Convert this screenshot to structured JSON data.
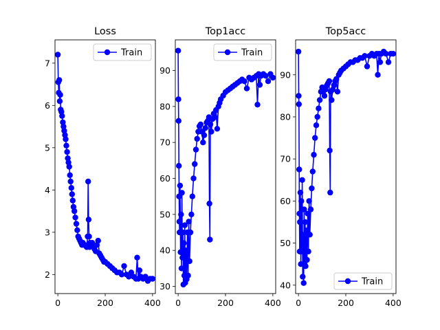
{
  "chart_data": [
    {
      "type": "line",
      "title": "Loss",
      "xlabel": "",
      "ylabel": "",
      "xlim": [
        -12,
        412
      ],
      "ylim": [
        1.55,
        7.55
      ],
      "xticks": [
        0,
        200,
        400
      ],
      "yticks": [
        2,
        3,
        4,
        5,
        6,
        7
      ],
      "legend": {
        "entries": [
          "Train"
        ],
        "placement": "top-right"
      },
      "grid": false,
      "series": [
        {
          "name": "Train",
          "color": "#0000ff",
          "marker": "circle",
          "x": [
            0,
            2,
            4,
            6,
            8,
            10,
            12,
            15,
            18,
            21,
            24,
            27,
            30,
            33,
            36,
            39,
            42,
            45,
            48,
            51,
            54,
            57,
            60,
            63,
            66,
            70,
            74,
            78,
            82,
            86,
            90,
            94,
            98,
            102,
            106,
            110,
            114,
            118,
            122,
            126,
            128,
            130,
            132,
            134,
            136,
            140,
            145,
            150,
            155,
            160,
            165,
            170,
            175,
            180,
            185,
            190,
            195,
            200,
            210,
            220,
            230,
            240,
            250,
            260,
            270,
            280,
            290,
            300,
            310,
            320,
            330,
            335,
            340,
            345,
            350,
            360,
            370,
            380,
            390,
            400
          ],
          "y": [
            7.2,
            6.55,
            6.3,
            6.6,
            6.1,
            6.25,
            5.9,
            5.85,
            5.75,
            5.6,
            5.5,
            5.4,
            5.3,
            5.2,
            5.05,
            4.9,
            4.75,
            4.65,
            4.55,
            4.35,
            4.2,
            4.05,
            3.9,
            3.75,
            3.6,
            3.5,
            3.35,
            3.2,
            3.05,
            2.9,
            2.85,
            2.8,
            2.75,
            2.7,
            2.75,
            2.7,
            2.7,
            2.68,
            2.65,
            2.9,
            4.2,
            3.3,
            2.9,
            2.65,
            2.75,
            2.7,
            2.75,
            2.65,
            2.6,
            2.55,
            2.7,
            2.8,
            2.5,
            2.45,
            2.4,
            2.35,
            2.3,
            2.3,
            2.25,
            2.2,
            2.15,
            2.1,
            2.05,
            2.05,
            2.0,
            2.2,
            2.0,
            1.95,
            2.05,
            1.95,
            1.9,
            2.4,
            1.9,
            2.1,
            1.95,
            1.9,
            1.95,
            1.85,
            1.9,
            1.9
          ]
        }
      ]
    },
    {
      "type": "line",
      "title": "Top1acc",
      "xlabel": "",
      "ylabel": "",
      "xlim": [
        -12,
        412
      ],
      "ylim": [
        28,
        98.5
      ],
      "xticks": [
        0,
        200,
        400
      ],
      "yticks": [
        30,
        40,
        50,
        60,
        70,
        80,
        90
      ],
      "legend": {
        "entries": [
          "Train"
        ],
        "placement": "top-right"
      },
      "grid": false,
      "series": [
        {
          "name": "Train",
          "color": "#0000ff",
          "marker": "circle",
          "x": [
            0,
            1,
            2,
            3,
            4,
            5,
            6,
            8,
            10,
            12,
            14,
            16,
            18,
            20,
            22,
            24,
            26,
            28,
            30,
            33,
            36,
            39,
            42,
            45,
            48,
            52,
            56,
            60,
            65,
            70,
            75,
            80,
            85,
            90,
            95,
            100,
            105,
            110,
            115,
            120,
            125,
            130,
            132,
            134,
            136,
            140,
            145,
            150,
            155,
            160,
            165,
            170,
            175,
            180,
            190,
            200,
            210,
            220,
            230,
            240,
            250,
            260,
            270,
            280,
            290,
            300,
            310,
            320,
            330,
            335,
            340,
            345,
            350,
            360,
            370,
            380,
            390,
            400
          ],
          "y": [
            95.5,
            82,
            76,
            63.5,
            55,
            48,
            45,
            58,
            39.5,
            50,
            35,
            56,
            38,
            45,
            30.5,
            42,
            33,
            47,
            31,
            40,
            32,
            45,
            33,
            48,
            37,
            45,
            50,
            55,
            60,
            64,
            68,
            71,
            73,
            74.5,
            75,
            73,
            70,
            72,
            74,
            75.5,
            76,
            77,
            53,
            43,
            75,
            73,
            76.5,
            78,
            77,
            79,
            73.8,
            80,
            81,
            82,
            83,
            84,
            84.5,
            85,
            85.5,
            86,
            86.5,
            87,
            87.5,
            87,
            85,
            88,
            87.5,
            88,
            88.5,
            80.5,
            89,
            86,
            88.5,
            89,
            88.5,
            87,
            89,
            88
          ]
        }
      ]
    },
    {
      "type": "line",
      "title": "Top5acc",
      "xlabel": "",
      "ylabel": "",
      "xlim": [
        -12,
        412
      ],
      "ylim": [
        38,
        98.3
      ],
      "xticks": [
        0,
        200,
        400
      ],
      "yticks": [
        40,
        50,
        60,
        70,
        80,
        90
      ],
      "legend": {
        "entries": [
          "Train"
        ],
        "placement": "bottom-right"
      },
      "grid": false,
      "series": [
        {
          "name": "Train",
          "color": "#0000ff",
          "marker": "circle",
          "x": [
            0,
            1,
            2,
            3,
            4,
            5,
            6,
            8,
            10,
            12,
            14,
            16,
            18,
            20,
            22,
            24,
            26,
            28,
            30,
            33,
            36,
            39,
            42,
            45,
            48,
            52,
            56,
            60,
            65,
            70,
            75,
            80,
            85,
            90,
            95,
            100,
            105,
            110,
            115,
            120,
            125,
            130,
            132,
            134,
            136,
            140,
            145,
            150,
            155,
            160,
            165,
            170,
            175,
            180,
            190,
            200,
            210,
            220,
            230,
            240,
            250,
            260,
            270,
            280,
            290,
            300,
            310,
            320,
            330,
            335,
            340,
            345,
            350,
            360,
            370,
            380,
            390,
            400
          ],
          "y": [
            95.5,
            85,
            83,
            67.5,
            57,
            48,
            55,
            62,
            45,
            60,
            48,
            65,
            42,
            52,
            40.5,
            58,
            45,
            55,
            44.5,
            53,
            46,
            57,
            48,
            60,
            52,
            58,
            63,
            67,
            71,
            75,
            78,
            80,
            82,
            84,
            86,
            87,
            86,
            85,
            86.5,
            87.5,
            88,
            88.5,
            72,
            62,
            86,
            84,
            86.5,
            87.5,
            88.5,
            89,
            86,
            90,
            90.5,
            91,
            91.5,
            92,
            92.5,
            93,
            93,
            93.5,
            93.5,
            94,
            94,
            94.5,
            92,
            94.5,
            95,
            94.5,
            95,
            90,
            95,
            93,
            95,
            95.5,
            95,
            93,
            95,
            95
          ]
        }
      ]
    }
  ]
}
